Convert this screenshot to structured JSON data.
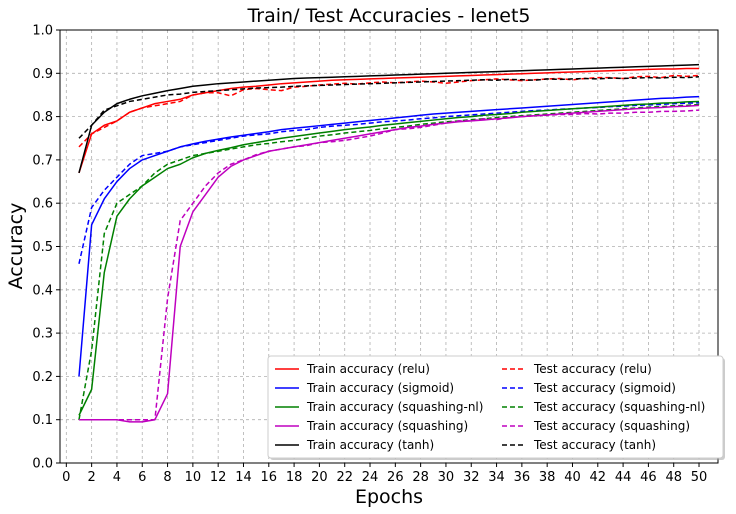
{
  "chart_data": {
    "type": "line",
    "title": "Train/ Test Accuracies - lenet5",
    "xlabel": "Epochs",
    "ylabel": "Accuracy",
    "xlim": [
      -0.5,
      51.5
    ],
    "ylim": [
      0.0,
      1.0
    ],
    "xticks": [
      0,
      2,
      4,
      6,
      8,
      10,
      12,
      14,
      16,
      18,
      20,
      22,
      24,
      26,
      28,
      30,
      32,
      34,
      36,
      38,
      40,
      42,
      44,
      46,
      48,
      50
    ],
    "xtick_labels": [
      "0",
      "2",
      "4",
      "6",
      "8",
      "10",
      "12",
      "14",
      "16",
      "18",
      "20",
      "22",
      "24",
      "26",
      "28",
      "30",
      "32",
      "34",
      "36",
      "38",
      "40",
      "42",
      "44",
      "46",
      "48",
      "50"
    ],
    "yticks": [
      0.0,
      0.1,
      0.2,
      0.3,
      0.4,
      0.5,
      0.6,
      0.7,
      0.8,
      0.9,
      1.0
    ],
    "ytick_labels": [
      "0.0",
      "0.1",
      "0.2",
      "0.3",
      "0.4",
      "0.5",
      "0.6",
      "0.7",
      "0.8",
      "0.9",
      "1.0"
    ],
    "grid": true,
    "legend_position": "bottom-right",
    "x": [
      1,
      2,
      3,
      4,
      5,
      6,
      7,
      8,
      9,
      10,
      11,
      12,
      13,
      14,
      15,
      16,
      17,
      18,
      19,
      20,
      21,
      22,
      23,
      24,
      25,
      26,
      27,
      28,
      29,
      30,
      31,
      32,
      33,
      34,
      35,
      36,
      37,
      38,
      39,
      40,
      41,
      42,
      43,
      44,
      45,
      46,
      47,
      48,
      49,
      50
    ],
    "series": [
      {
        "name": "Train accuracy (relu)",
        "color": "#ff0000",
        "dash": "solid",
        "values": [
          0.67,
          0.76,
          0.78,
          0.79,
          0.81,
          0.82,
          0.83,
          0.835,
          0.84,
          0.85,
          0.855,
          0.86,
          0.865,
          0.868,
          0.87,
          0.873,
          0.876,
          0.878,
          0.88,
          0.882,
          0.884,
          0.885,
          0.886,
          0.887,
          0.888,
          0.889,
          0.89,
          0.891,
          0.892,
          0.893,
          0.894,
          0.895,
          0.896,
          0.897,
          0.898,
          0.899,
          0.9,
          0.901,
          0.902,
          0.903,
          0.904,
          0.905,
          0.906,
          0.907,
          0.908,
          0.909,
          0.91,
          0.91,
          0.911,
          0.911
        ]
      },
      {
        "name": "Test accuracy (relu)",
        "color": "#ff0000",
        "dash": "dashed",
        "values": [
          0.73,
          0.76,
          0.775,
          0.79,
          0.81,
          0.82,
          0.825,
          0.83,
          0.835,
          0.85,
          0.855,
          0.855,
          0.848,
          0.862,
          0.865,
          0.862,
          0.86,
          0.868,
          0.87,
          0.873,
          0.875,
          0.877,
          0.875,
          0.878,
          0.88,
          0.878,
          0.88,
          0.882,
          0.88,
          0.877,
          0.88,
          0.883,
          0.885,
          0.887,
          0.885,
          0.883,
          0.885,
          0.887,
          0.888,
          0.885,
          0.888,
          0.89,
          0.89,
          0.888,
          0.892,
          0.893,
          0.89,
          0.895,
          0.893,
          0.895
        ]
      },
      {
        "name": "Train accuracy (sigmoid)",
        "color": "#0000ff",
        "dash": "solid",
        "values": [
          0.2,
          0.55,
          0.61,
          0.65,
          0.68,
          0.7,
          0.71,
          0.72,
          0.73,
          0.737,
          0.743,
          0.748,
          0.753,
          0.757,
          0.761,
          0.765,
          0.77,
          0.773,
          0.776,
          0.779,
          0.782,
          0.785,
          0.788,
          0.791,
          0.794,
          0.797,
          0.8,
          0.803,
          0.806,
          0.808,
          0.81,
          0.812,
          0.814,
          0.816,
          0.818,
          0.82,
          0.822,
          0.824,
          0.826,
          0.828,
          0.83,
          0.832,
          0.834,
          0.836,
          0.838,
          0.84,
          0.842,
          0.843,
          0.845,
          0.846
        ]
      },
      {
        "name": "Test accuracy (sigmoid)",
        "color": "#0000ff",
        "dash": "dashed",
        "values": [
          0.46,
          0.59,
          0.63,
          0.66,
          0.69,
          0.71,
          0.715,
          0.72,
          0.73,
          0.735,
          0.74,
          0.745,
          0.75,
          0.755,
          0.758,
          0.76,
          0.765,
          0.768,
          0.77,
          0.775,
          0.778,
          0.78,
          0.782,
          0.785,
          0.788,
          0.79,
          0.792,
          0.795,
          0.797,
          0.8,
          0.802,
          0.804,
          0.806,
          0.808,
          0.81,
          0.812,
          0.814,
          0.815,
          0.817,
          0.818,
          0.82,
          0.821,
          0.823,
          0.824,
          0.826,
          0.827,
          0.828,
          0.83,
          0.831,
          0.832
        ]
      },
      {
        "name": "Test accuracy (squashing-nl)",
        "color": "#008000",
        "dash": "dashed",
        "values": [
          0.1,
          0.26,
          0.53,
          0.6,
          0.62,
          0.64,
          0.67,
          0.69,
          0.7,
          0.71,
          0.715,
          0.72,
          0.725,
          0.73,
          0.735,
          0.738,
          0.742,
          0.745,
          0.75,
          0.755,
          0.758,
          0.762,
          0.765,
          0.768,
          0.772,
          0.775,
          0.778,
          0.782,
          0.785,
          0.788,
          0.79,
          0.793,
          0.795,
          0.798,
          0.8,
          0.802,
          0.804,
          0.806,
          0.808,
          0.81,
          0.812,
          0.814,
          0.816,
          0.818,
          0.82,
          0.822,
          0.823,
          0.825,
          0.826,
          0.828
        ]
      },
      {
        "name": "Train accuracy (squashing-nl)",
        "color": "#008000",
        "dash": "solid",
        "values": [
          0.11,
          0.17,
          0.44,
          0.57,
          0.61,
          0.64,
          0.66,
          0.68,
          0.69,
          0.705,
          0.715,
          0.722,
          0.728,
          0.735,
          0.74,
          0.745,
          0.75,
          0.754,
          0.758,
          0.762,
          0.766,
          0.77,
          0.773,
          0.776,
          0.78,
          0.783,
          0.786,
          0.789,
          0.792,
          0.795,
          0.798,
          0.8,
          0.803,
          0.805,
          0.807,
          0.81,
          0.812,
          0.814,
          0.816,
          0.818,
          0.82,
          0.822,
          0.824,
          0.826,
          0.828,
          0.829,
          0.831,
          0.832,
          0.834,
          0.835
        ]
      },
      {
        "name": "Train accuracy (squashing)",
        "color": "#bf00bf",
        "dash": "solid",
        "values": [
          0.1,
          0.1,
          0.1,
          0.1,
          0.095,
          0.095,
          0.1,
          0.16,
          0.5,
          0.58,
          0.62,
          0.66,
          0.685,
          0.7,
          0.71,
          0.72,
          0.725,
          0.73,
          0.735,
          0.74,
          0.745,
          0.75,
          0.755,
          0.76,
          0.765,
          0.77,
          0.775,
          0.778,
          0.782,
          0.785,
          0.788,
          0.79,
          0.792,
          0.795,
          0.797,
          0.8,
          0.802,
          0.804,
          0.806,
          0.808,
          0.81,
          0.812,
          0.814,
          0.816,
          0.818,
          0.82,
          0.821,
          0.823,
          0.824,
          0.826
        ]
      },
      {
        "name": "Test accuracy (squashing)",
        "color": "#bf00bf",
        "dash": "dashed",
        "values": [
          0.1,
          0.1,
          0.1,
          0.1,
          0.1,
          0.1,
          0.1,
          0.38,
          0.56,
          0.6,
          0.64,
          0.67,
          0.69,
          0.7,
          0.712,
          0.72,
          0.725,
          0.73,
          0.733,
          0.74,
          0.742,
          0.745,
          0.75,
          0.755,
          0.762,
          0.77,
          0.772,
          0.775,
          0.78,
          0.785,
          0.79,
          0.79,
          0.795,
          0.793,
          0.798,
          0.8,
          0.802,
          0.803,
          0.805,
          0.805,
          0.807,
          0.806,
          0.808,
          0.808,
          0.81,
          0.81,
          0.812,
          0.812,
          0.813,
          0.815
        ]
      },
      {
        "name": "Train accuracy (tanh)",
        "color": "#000000",
        "dash": "solid",
        "values": [
          0.67,
          0.78,
          0.81,
          0.83,
          0.84,
          0.848,
          0.854,
          0.86,
          0.865,
          0.87,
          0.873,
          0.876,
          0.878,
          0.88,
          0.882,
          0.884,
          0.886,
          0.888,
          0.889,
          0.89,
          0.891,
          0.892,
          0.893,
          0.894,
          0.895,
          0.896,
          0.897,
          0.898,
          0.899,
          0.9,
          0.901,
          0.902,
          0.903,
          0.904,
          0.905,
          0.906,
          0.907,
          0.908,
          0.909,
          0.91,
          0.911,
          0.912,
          0.913,
          0.914,
          0.915,
          0.916,
          0.917,
          0.918,
          0.919,
          0.92
        ]
      },
      {
        "name": "Test accuracy (tanh)",
        "color": "#000000",
        "dash": "dashed",
        "values": [
          0.75,
          0.78,
          0.815,
          0.825,
          0.835,
          0.84,
          0.845,
          0.85,
          0.852,
          0.856,
          0.858,
          0.86,
          0.862,
          0.864,
          0.866,
          0.867,
          0.868,
          0.87,
          0.871,
          0.872,
          0.873,
          0.874,
          0.875,
          0.876,
          0.877,
          0.878,
          0.879,
          0.88,
          0.881,
          0.882,
          0.883,
          0.884,
          0.885,
          0.884,
          0.886,
          0.885,
          0.884,
          0.887,
          0.886,
          0.887,
          0.888,
          0.887,
          0.889,
          0.888,
          0.889,
          0.89,
          0.889,
          0.891,
          0.89,
          0.892
        ]
      }
    ]
  },
  "legend": {
    "items": [
      {
        "label": "Train accuracy (relu)",
        "color": "#ff0000",
        "dash": "solid"
      },
      {
        "label": "Test accuracy (relu)",
        "color": "#ff0000",
        "dash": "dashed"
      },
      {
        "label": "Train accuracy (sigmoid)",
        "color": "#0000ff",
        "dash": "solid"
      },
      {
        "label": "Test accuracy (sigmoid)",
        "color": "#0000ff",
        "dash": "dashed"
      },
      {
        "label": "Train accuracy (squashing-nl)",
        "color": "#008000",
        "dash": "solid"
      },
      {
        "label": "Test accuracy (squashing-nl)",
        "color": "#008000",
        "dash": "dashed"
      },
      {
        "label": "Train accuracy (squashing)",
        "color": "#bf00bf",
        "dash": "solid"
      },
      {
        "label": "Test accuracy (squashing)",
        "color": "#bf00bf",
        "dash": "dashed"
      },
      {
        "label": "Train accuracy (tanh)",
        "color": "#000000",
        "dash": "solid"
      },
      {
        "label": "Test accuracy (tanh)",
        "color": "#000000",
        "dash": "dashed"
      }
    ]
  }
}
